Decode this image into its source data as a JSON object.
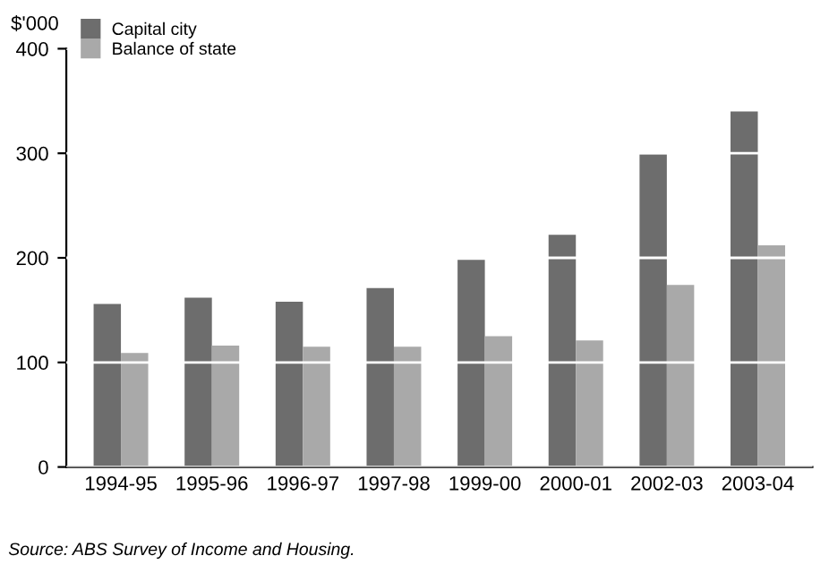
{
  "chart_data": {
    "type": "bar",
    "ylabel": "$'000",
    "categories": [
      "1994-95",
      "1995-96",
      "1996-97",
      "1997-98",
      "1999-00",
      "2000-01",
      "2002-03",
      "2003-04"
    ],
    "series": [
      {
        "name": "Capital city",
        "color": "#6d6d6d",
        "values": [
          156,
          162,
          158,
          171,
          198,
          222,
          299,
          340
        ]
      },
      {
        "name": "Balance of state",
        "color": "#a9a9a9",
        "values": [
          109,
          116,
          115,
          115,
          125,
          121,
          174,
          212
        ]
      }
    ],
    "ylim": [
      0,
      400
    ],
    "yticks": [
      0,
      100,
      200,
      300,
      400
    ],
    "grid": "y",
    "legend": "top left",
    "annotations": [
      "Source: ABS Survey of Income and Housing."
    ]
  }
}
